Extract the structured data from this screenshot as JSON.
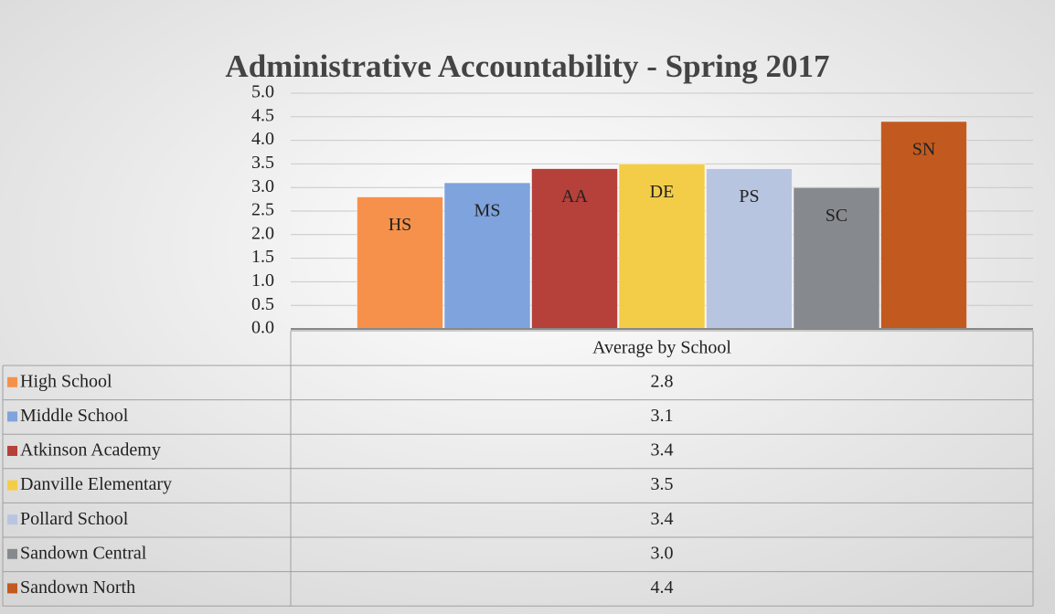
{
  "chart_data": {
    "type": "bar",
    "title": "Administrative Accountability - Spring 2017",
    "categories": [
      "Average by School"
    ],
    "series": [
      {
        "name": "High School",
        "short": "HS",
        "color": "#f5914a",
        "values": [
          2.8
        ],
        "value_labels": [
          "2.8"
        ]
      },
      {
        "name": "Middle School",
        "short": "MS",
        "color": "#7fa3dc",
        "values": [
          3.1
        ],
        "value_labels": [
          "3.1"
        ]
      },
      {
        "name": "Atkinson Academy",
        "short": "AA",
        "color": "#b5413a",
        "values": [
          3.4
        ],
        "value_labels": [
          "3.4"
        ]
      },
      {
        "name": "Danville Elementary",
        "short": "DE",
        "color": "#f3cd48",
        "values": [
          3.5
        ],
        "value_labels": [
          "3.5"
        ]
      },
      {
        "name": "Pollard School",
        "short": "PS",
        "color": "#b8c5e0",
        "values": [
          3.4
        ],
        "value_labels": [
          "3.4"
        ]
      },
      {
        "name": "Sandown Central",
        "short": "SC",
        "color": "#868a8f",
        "values": [
          3.0
        ],
        "value_labels": [
          "3.0"
        ]
      },
      {
        "name": "Sandown North",
        "short": "SN",
        "color": "#c25a20",
        "values": [
          4.4
        ],
        "value_labels": [
          "4.4"
        ]
      }
    ],
    "ylim": [
      0,
      5
    ],
    "yticks": [
      {
        "value": 0,
        "label": "0.0"
      },
      0.5,
      {
        "value": 1,
        "label": "1.0"
      },
      1.5,
      {
        "value": 2,
        "label": "2.0"
      },
      2.5,
      {
        "value": 3,
        "label": "3.0"
      },
      3.5,
      {
        "value": 4,
        "label": "4.0"
      },
      4.5,
      {
        "value": 5,
        "label": "5.0"
      }
    ],
    "grid": true,
    "data_table": true
  }
}
